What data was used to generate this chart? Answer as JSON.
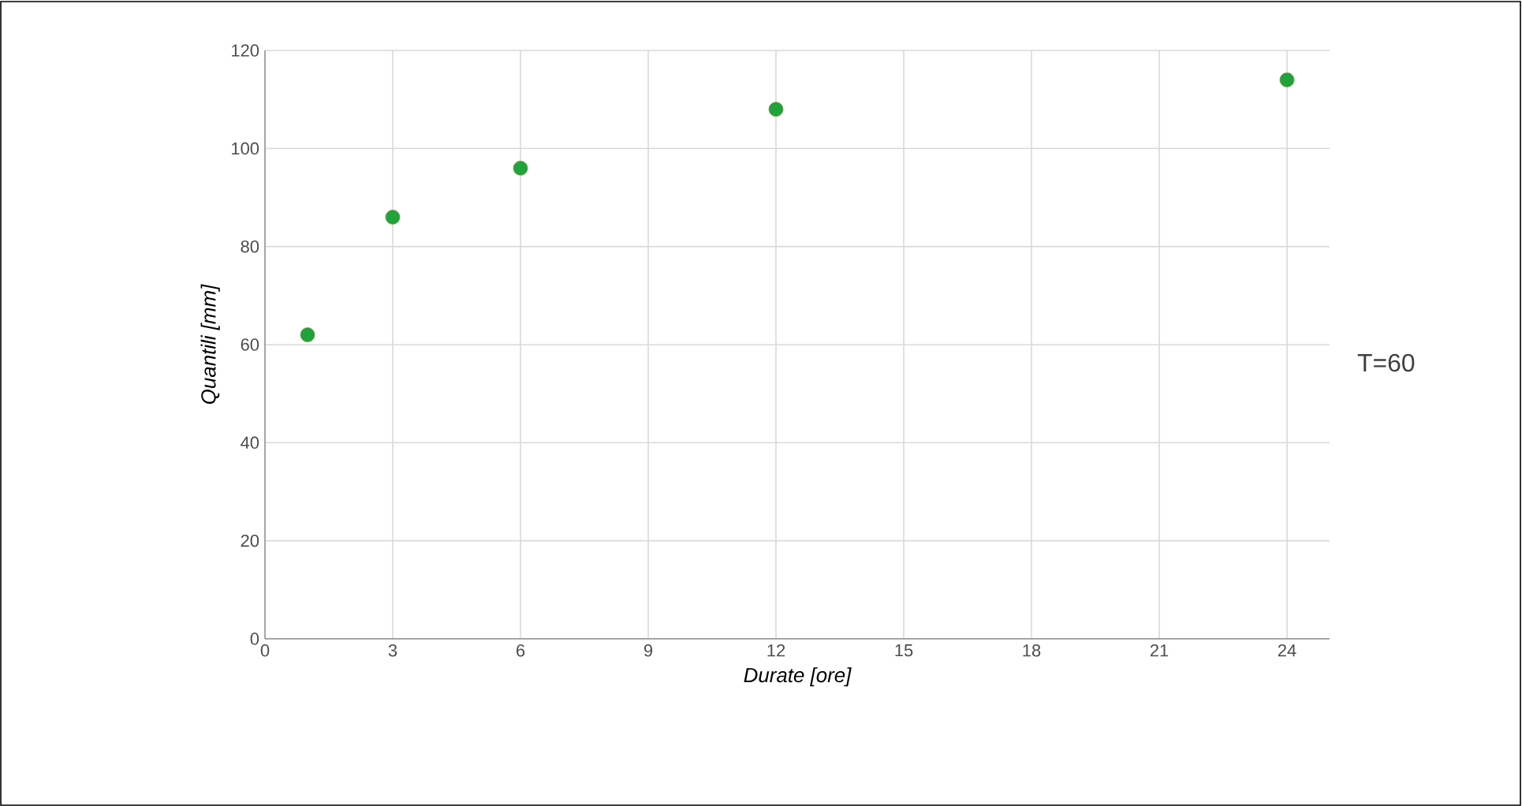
{
  "chart_data": {
    "type": "scatter",
    "x": [
      1,
      3,
      6,
      12,
      24
    ],
    "series": [
      {
        "color": "#1fa33a",
        "values": [
          62,
          86,
          96,
          108,
          114
        ]
      }
    ],
    "xlabel": "Durate [ore]",
    "ylabel": "Quantili [mm]",
    "xlim": [
      0,
      25
    ],
    "xticks": [
      0,
      3,
      6,
      9,
      12,
      15,
      18,
      21,
      24
    ],
    "ylim": [
      0,
      120
    ],
    "yticks": [
      0,
      20,
      40,
      60,
      80,
      100,
      120
    ],
    "grid": true,
    "annotations": [
      "T=60"
    ]
  }
}
